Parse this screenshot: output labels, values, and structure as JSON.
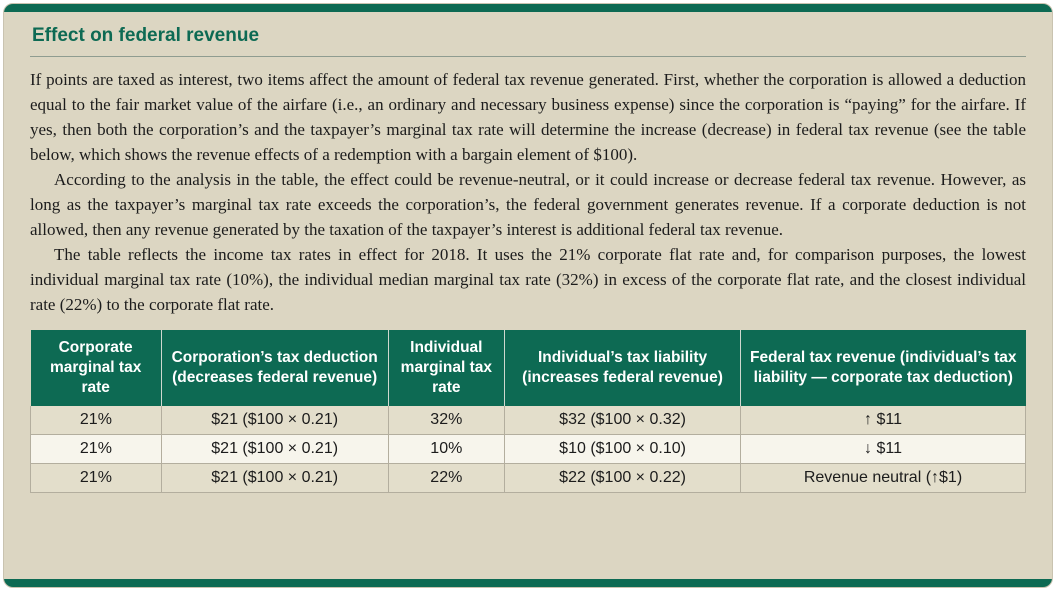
{
  "page": {
    "title": "Effect on federal revenue"
  },
  "paragraphs": [
    "If points are taxed as interest, two items affect the amount of federal tax revenue generated. First, whether the corporation is allowed a deduction equal to the fair market value of the airfare (i.e., an ordinary and necessary business expense) since the corporation is “paying” for the airfare. If yes, then both the corporation’s and the taxpayer’s marginal tax rate will determine the increase (decrease) in federal tax revenue (see the table below, which shows the revenue effects of a redemption with a bargain element of $100).",
    "According to the analysis in the table, the effect could be revenue-neutral, or it could increase or decrease federal tax revenue. However, as long as the taxpayer’s marginal tax rate exceeds the corporation’s, the federal government generates revenue. If a corporate deduction is not allowed, then any revenue generated by the taxation of the taxpayer’s interest is additional federal tax revenue.",
    "The table reflects the income tax rates in effect for 2018. It uses the 21% corporate flat rate and, for comparison purposes, the lowest individual marginal tax rate (10%), the individual median marginal tax rate (32%) in excess of the corporate flat rate, and the closest individual rate (22%) to the corporate flat rate."
  ],
  "table": {
    "headers": [
      "Corporate marginal tax rate",
      "Corporation’s tax deduction (decreases federal revenue)",
      "Individual marginal tax rate",
      "Individual’s tax liability (increases federal revenue)",
      "Federal tax revenue (individual’s tax liability — corporate tax deduction)"
    ],
    "rows": [
      [
        "21%",
        "$21 ($100 × 0.21)",
        "32%",
        "$32 ($100 × 0.32)",
        "↑ $11"
      ],
      [
        "21%",
        "$21 ($100 × 0.21)",
        "10%",
        "$10 ($100 × 0.10)",
        "↓ $11"
      ],
      [
        "21%",
        "$21 ($100 × 0.21)",
        "22%",
        "$22 ($100 × 0.22)",
        "Revenue neutral (↑$1)"
      ]
    ]
  },
  "colors": {
    "accent_green": "#0d6a53",
    "card_background": "#dcd6c2",
    "row_beige": "#e3decb",
    "row_light": "#f7f5ec"
  }
}
